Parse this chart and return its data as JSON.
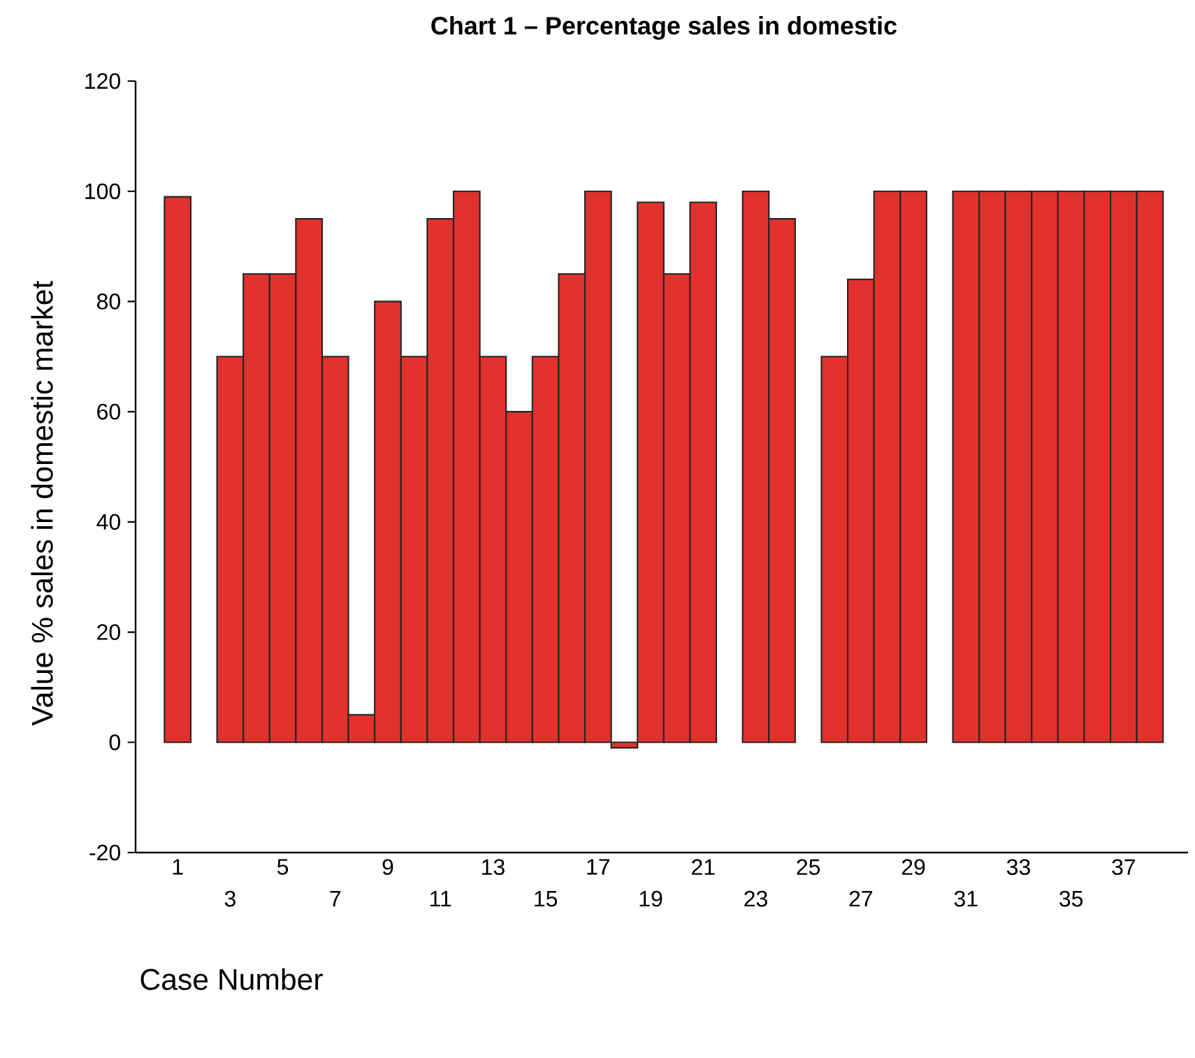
{
  "chart_data": {
    "type": "bar",
    "title": "Chart 1 – Percentage sales in domestic",
    "xlabel": "Case Number",
    "ylabel": "Value % sales in domestic market",
    "categories": [
      "1",
      null,
      "3",
      null,
      "5",
      null,
      "7",
      null,
      "9",
      null,
      "11",
      null,
      "13",
      null,
      "15",
      null,
      "17",
      null,
      "19",
      null,
      "21",
      null,
      "23",
      null,
      "25",
      null,
      "27",
      null,
      "29",
      null,
      "31",
      null,
      "33",
      null,
      "35",
      null,
      "37",
      null
    ],
    "values": [
      99,
      null,
      70,
      85,
      85,
      95,
      70,
      5,
      80,
      70,
      95,
      100,
      70,
      60,
      70,
      85,
      100,
      -1,
      98,
      85,
      98,
      null,
      100,
      95,
      null,
      70,
      84,
      100,
      100,
      null,
      100,
      100,
      100,
      100,
      100,
      100,
      100,
      100
    ],
    "color": "#e0312d",
    "ylim": [
      -20,
      120
    ],
    "yticks": [
      -20,
      0,
      20,
      40,
      60,
      80,
      100,
      120
    ]
  }
}
